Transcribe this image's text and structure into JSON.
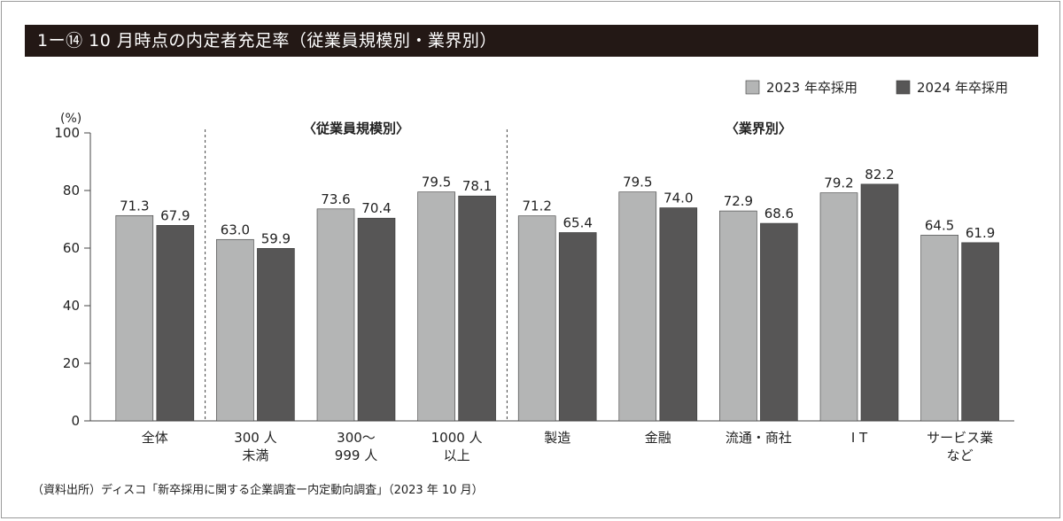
{
  "title": "1ー⑭ 10 月時点の内定者充足率（従業員規模別・業界別）",
  "source": "（資料出所）ディスコ「新卒採用に関する企業調査ー内定動向調査」（2023 年 10 月）",
  "chart_data": {
    "type": "bar",
    "y_unit": "(%)",
    "ylim": [
      0,
      100
    ],
    "yticks": [
      0,
      20,
      40,
      60,
      80,
      100
    ],
    "grid": false,
    "legend_position": "top-right",
    "group_labels": [
      "〈従業員規模別〉",
      "〈業界別〉"
    ],
    "categories": [
      [
        "全体"
      ],
      [
        "300 人",
        "未満"
      ],
      [
        "300〜",
        "999 人"
      ],
      [
        "1000 人",
        "以上"
      ],
      [
        "製造"
      ],
      [
        "金融"
      ],
      [
        "流通・商社"
      ],
      [
        "I T"
      ],
      [
        "サービス業",
        "など"
      ]
    ],
    "series": [
      {
        "name": "2023 年卒採用",
        "color": "#b4b5b5",
        "values": [
          71.3,
          63.0,
          73.6,
          79.5,
          71.2,
          79.5,
          72.9,
          79.2,
          64.5
        ],
        "labels": [
          "71.3",
          "63.0",
          "73.6",
          "79.5",
          "71.2",
          "79.5",
          "72.9",
          "79.2",
          "64.5"
        ]
      },
      {
        "name": "2024 年卒採用",
        "color": "#575656",
        "values": [
          67.9,
          59.9,
          70.4,
          78.1,
          65.4,
          74.0,
          68.6,
          82.2,
          61.9
        ],
        "labels": [
          "67.9",
          "59.9",
          "70.4",
          "78.1",
          "65.4",
          "74.0",
          "68.6",
          "82.2",
          "61.9"
        ]
      }
    ]
  }
}
